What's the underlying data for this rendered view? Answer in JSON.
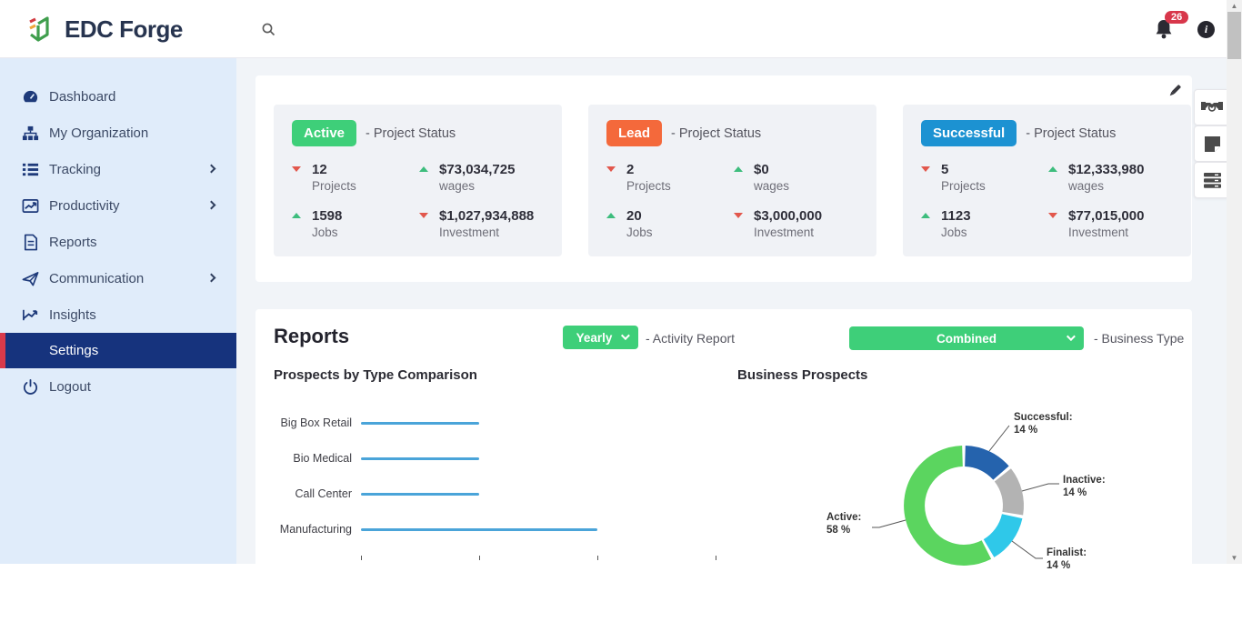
{
  "header": {
    "brand": "EDC Forge",
    "notification_count": "26",
    "info_glyph": "i"
  },
  "sidebar": {
    "items": [
      {
        "label": "Dashboard",
        "icon": "gauge-icon",
        "has_children": false,
        "active": false
      },
      {
        "label": "My Organization",
        "icon": "org-chart-icon",
        "has_children": false,
        "active": false
      },
      {
        "label": "Tracking",
        "icon": "list-icon",
        "has_children": true,
        "active": false
      },
      {
        "label": "Productivity",
        "icon": "chart-box-icon",
        "has_children": true,
        "active": false
      },
      {
        "label": "Reports",
        "icon": "document-icon",
        "has_children": false,
        "active": false
      },
      {
        "label": "Communication",
        "icon": "paper-plane-icon",
        "has_children": true,
        "active": false
      },
      {
        "label": "Insights",
        "icon": "trend-icon",
        "has_children": false,
        "active": false
      },
      {
        "label": "Settings",
        "icon": null,
        "has_children": false,
        "active": true
      },
      {
        "label": "Logout",
        "icon": "power-icon",
        "has_children": false,
        "active": false
      }
    ]
  },
  "status_panel": {
    "edit_icon": "pencil-icon",
    "cards": [
      {
        "badge": "Active",
        "badge_color": "#3ecf79",
        "title_suffix": "- Project Status",
        "stats": [
          {
            "dir": "down",
            "value": "12",
            "label": "Projects"
          },
          {
            "dir": "up",
            "value": "$73,034,725",
            "label": "wages"
          },
          {
            "dir": "up",
            "value": "1598",
            "label": "Jobs"
          },
          {
            "dir": "down",
            "value": "$1,027,934,888",
            "label": "Investment"
          }
        ]
      },
      {
        "badge": "Lead",
        "badge_color": "#f4693b",
        "title_suffix": "- Project Status",
        "stats": [
          {
            "dir": "down",
            "value": "2",
            "label": "Projects"
          },
          {
            "dir": "up",
            "value": "$0",
            "label": "wages"
          },
          {
            "dir": "up",
            "value": "20",
            "label": "Jobs"
          },
          {
            "dir": "down",
            "value": "$3,000,000",
            "label": "Investment"
          }
        ]
      },
      {
        "badge": "Successful",
        "badge_color": "#1c92d2",
        "title_suffix": "- Project Status",
        "stats": [
          {
            "dir": "down",
            "value": "5",
            "label": "Projects"
          },
          {
            "dir": "up",
            "value": "$12,333,980",
            "label": "wages"
          },
          {
            "dir": "up",
            "value": "1123",
            "label": "Jobs"
          },
          {
            "dir": "down",
            "value": "$77,015,000",
            "label": "Investment"
          }
        ]
      }
    ]
  },
  "reports": {
    "title": "Reports",
    "activity_filter": {
      "value": "Yearly",
      "suffix": "- Activity Report"
    },
    "business_filter": {
      "value": "Combined",
      "suffix": "- Business Type"
    }
  },
  "chart_data": [
    {
      "type": "bar",
      "orientation": "horizontal",
      "title": "Prospects by Type Comparison",
      "categories": [
        "Big Box Retail",
        "Bio Medical",
        "Call Center",
        "Manufacturing"
      ],
      "values": [
        1,
        1,
        1,
        2
      ],
      "xlim": [
        0,
        3
      ],
      "bar_color": "#4aa4d9",
      "grid": false,
      "tick_labels_visible": false
    },
    {
      "type": "pie",
      "subtype": "donut",
      "title": "Business Prospects",
      "segments": [
        {
          "name": "Successful",
          "pct": 14,
          "color": "#2563ad",
          "label_line1": "Successful:",
          "label_line2": "14 %"
        },
        {
          "name": "Inactive",
          "pct": 14,
          "color": "#b3b3b3",
          "label_line1": "Inactive:",
          "label_line2": "14 %"
        },
        {
          "name": "Finalist",
          "pct": 14,
          "color": "#2fc8e9",
          "label_line1": "Finalist:",
          "label_line2": "14 %"
        },
        {
          "name": "Active",
          "pct": 58,
          "color": "#5bd55f",
          "label_line1": "Active:",
          "label_line2": "58 %"
        }
      ],
      "start_angle_deg": -90,
      "direction": "clockwise",
      "legend": "none",
      "labels": "outside-with-leader-lines"
    }
  ],
  "floating_buttons": [
    {
      "icon": "handshake-icon"
    },
    {
      "icon": "sticky-note-icon"
    },
    {
      "icon": "server-icon"
    }
  ],
  "colors": {
    "sidebar_bg": "#e0ecfa",
    "sidebar_active_bg": "#16337d",
    "sidebar_active_border": "#d93a4a",
    "accent_green": "#3ecf79",
    "lead_orange": "#f4693b",
    "successful_blue": "#1c92d2",
    "arrow_up_green": "#3dbd7d",
    "arrow_down_red": "#e2574c",
    "notification_red": "#d8374b",
    "main_bg": "#f1f4f8",
    "card_bg": "#f0f2f6"
  }
}
